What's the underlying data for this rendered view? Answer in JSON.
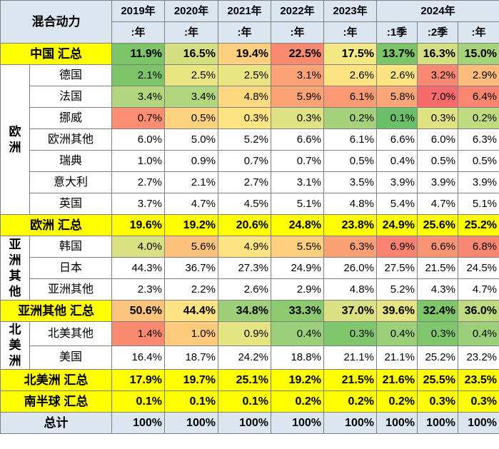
{
  "header": {
    "corner": "混合动力",
    "years": [
      "2019年",
      "2020年",
      "2021年",
      "2022年",
      "2023年",
      "2024年"
    ],
    "periods": [
      ":年",
      ":年",
      ":年",
      ":年",
      ":年",
      ":1季",
      ":2季",
      ":年"
    ]
  },
  "china_total": {
    "label": "中国 汇总",
    "values": [
      "11.9%",
      "16.5%",
      "19.4%",
      "22.5%",
      "17.5%",
      "13.7%",
      "16.3%",
      "15.0%"
    ]
  },
  "europe": {
    "region_label": [
      "欧",
      "洲"
    ],
    "rows": [
      {
        "name": "德国",
        "values": [
          "2.1%",
          "2.5%",
          "2.5%",
          "3.1%",
          "2.6%",
          "2.6%",
          "3.2%",
          "2.9%"
        ],
        "colors": [
          "#7cc369",
          "#e9e583",
          "#e9e583",
          "#fca276",
          "#fee382",
          "#fee382",
          "#fa8872",
          "#fcbc7b"
        ]
      },
      {
        "name": "法国",
        "values": [
          "3.4%",
          "3.4%",
          "4.8%",
          "5.9%",
          "6.1%",
          "5.8%",
          "7.0%",
          "6.4%"
        ],
        "colors": [
          "#b2d67e",
          "#b2d67e",
          "#fed781",
          "#fca376",
          "#fb9a75",
          "#fca576",
          "#f8696b",
          "#fa8571"
        ]
      },
      {
        "name": "挪威",
        "values": [
          "0.7%",
          "0.5%",
          "0.3%",
          "0.3%",
          "0.2%",
          "0.1%",
          "0.3%",
          "0.2%"
        ],
        "colors": [
          "#f98e72",
          "#fed17f",
          "#fee382",
          "#dfe283",
          "#a5d17c",
          "#6abf68",
          "#dfe283",
          "#bedb80"
        ]
      },
      {
        "name": "欧洲其他",
        "values": [
          "6.0%",
          "5.0%",
          "5.2%",
          "6.6%",
          "6.1%",
          "6.6%",
          "6.0%",
          "6.3%"
        ]
      },
      {
        "name": "瑞典",
        "values": [
          "1.0%",
          "0.9%",
          "0.7%",
          "0.7%",
          "0.5%",
          "0.4%",
          "0.5%",
          "0.5%"
        ]
      },
      {
        "name": "意大利",
        "values": [
          "2.7%",
          "2.1%",
          "2.7%",
          "3.1%",
          "3.5%",
          "3.9%",
          "3.9%",
          "3.9%"
        ]
      },
      {
        "name": "英国",
        "values": [
          "3.7%",
          "4.7%",
          "4.5%",
          "5.1%",
          "4.8%",
          "5.4%",
          "4.7%",
          "5.1%"
        ]
      }
    ]
  },
  "europe_total": {
    "label": "欧洲 汇总",
    "values": [
      "19.6%",
      "19.2%",
      "20.6%",
      "24.8%",
      "23.8%",
      "24.9%",
      "25.6%",
      "25.2%"
    ]
  },
  "asia_other": {
    "region_label": [
      "亚",
      "洲",
      "其",
      "他"
    ],
    "rows": [
      {
        "name": "韩国",
        "values": [
          "4.0%",
          "5.6%",
          "4.9%",
          "5.5%",
          "6.3%",
          "6.9%",
          "6.6%",
          "6.8%"
        ],
        "colors": [
          "#d9e182",
          "#fdc27c",
          "#fee382",
          "#fdcf7e",
          "#fba176",
          "#f98270",
          "#fa9473",
          "#f98771"
        ]
      },
      {
        "name": "日本",
        "values": [
          "44.3%",
          "36.7%",
          "27.3%",
          "24.9%",
          "26.0%",
          "27.5%",
          "21.5%",
          "24.5%"
        ]
      },
      {
        "name": "亚洲其他",
        "values": [
          "2.3%",
          "2.2%",
          "2.6%",
          "2.9%",
          "4.8%",
          "5.2%",
          "4.3%",
          "4.7%"
        ]
      }
    ]
  },
  "asia_other_total": {
    "label": "亚洲其他 汇总",
    "values": [
      "50.6%",
      "44.4%",
      "34.8%",
      "33.3%",
      "37.0%",
      "39.6%",
      "32.4%",
      "36.0%"
    ],
    "colors": [
      "#fdc47d",
      "#fee382",
      "#9fcf7a",
      "#8cc96f",
      "#d9e183",
      "#e6e483",
      "#7fc66b",
      "#bfda80"
    ]
  },
  "north_america": {
    "region_label": [
      "北",
      "美",
      "洲"
    ],
    "rows": [
      {
        "name": "北美其他",
        "values": [
          "1.4%",
          "1.0%",
          "0.9%",
          "0.4%",
          "0.3%",
          "0.4%",
          "0.3%",
          "0.4%"
        ],
        "colors": [
          "#f98a71",
          "#fdca7e",
          "#e5e483",
          "#9ccf79",
          "#7fc66c",
          "#9ccf79",
          "#7fc66c",
          "#9ccf79"
        ]
      },
      {
        "name": "美国",
        "values": [
          "16.4%",
          "18.7%",
          "24.2%",
          "18.8%",
          "21.1%",
          "21.1%",
          "25.2%",
          "23.2%"
        ]
      }
    ]
  },
  "north_america_total": {
    "label": "北美洲 汇总",
    "values": [
      "17.9%",
      "19.7%",
      "25.1%",
      "19.2%",
      "21.5%",
      "21.6%",
      "25.5%",
      "23.5%"
    ]
  },
  "southern_total": {
    "label": "南半球 汇总",
    "values": [
      "0.1%",
      "0.1%",
      "0.1%",
      "0.2%",
      "0.2%",
      "0.2%",
      "0.3%",
      "0.3%"
    ]
  },
  "grand_total": {
    "label": "总计",
    "values": [
      "100%",
      "100%",
      "100%",
      "100%",
      "100%",
      "100%",
      "100%",
      "100%"
    ]
  },
  "china_total_colors": [
    "#7cc369",
    "#d4df82",
    "#fdcf7f",
    "#f98a71",
    "#f3e884",
    "#7cc369",
    "#d4df82",
    "#a7d27c"
  ]
}
